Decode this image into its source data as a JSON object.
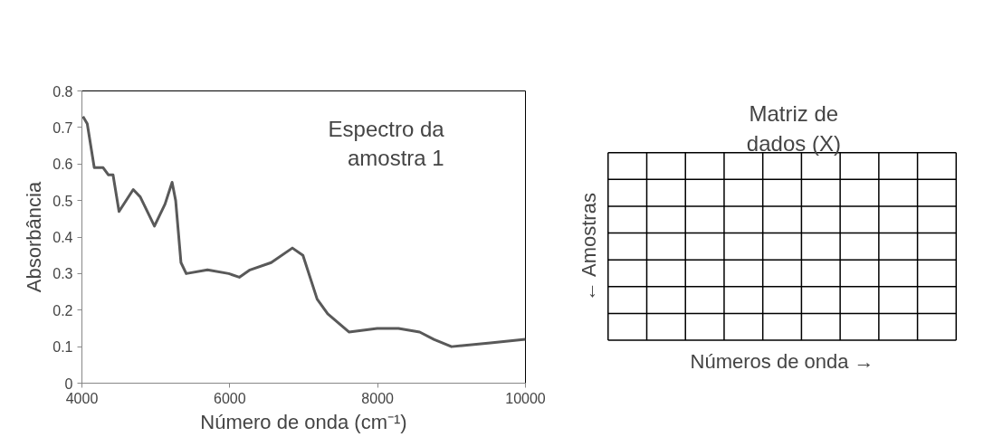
{
  "chart_data": {
    "type": "line",
    "xlabel": "Número de onda (cm⁻¹)",
    "ylabel": "Absorbância",
    "x": [
      4014,
      4072,
      4167,
      4287,
      4359,
      4421,
      4502,
      4694,
      4789,
      4981,
      5124,
      5220,
      5268,
      5340,
      5411,
      5699,
      5986,
      6129,
      6273,
      6560,
      6847,
      6990,
      7182,
      7325,
      7612,
      7995,
      8282,
      8569,
      8761,
      9000,
      9526,
      10000
    ],
    "series": [
      {
        "color": "#595959",
        "values": [
          0.73,
          0.71,
          0.59,
          0.59,
          0.57,
          0.57,
          0.47,
          0.53,
          0.51,
          0.43,
          0.49,
          0.55,
          0.5,
          0.33,
          0.3,
          0.31,
          0.3,
          0.29,
          0.31,
          0.33,
          0.37,
          0.35,
          0.23,
          0.19,
          0.14,
          0.15,
          0.15,
          0.14,
          0.12,
          0.1,
          0.11,
          0.12
        ]
      }
    ],
    "xlim": [
      4000,
      10000
    ],
    "xticks": [
      4000,
      6000,
      8000,
      10000
    ],
    "ylim": [
      0,
      0.8
    ],
    "yticks": [
      0,
      0.1,
      0.2,
      0.3,
      0.4,
      0.5,
      0.6,
      0.7,
      0.8
    ],
    "grid": false,
    "marker": "none",
    "line_style": "solid",
    "annotations": [
      "Espectro da amostra 1",
      "Matriz de dados (X)",
      "← Amostras",
      "Números de onda →"
    ]
  }
}
